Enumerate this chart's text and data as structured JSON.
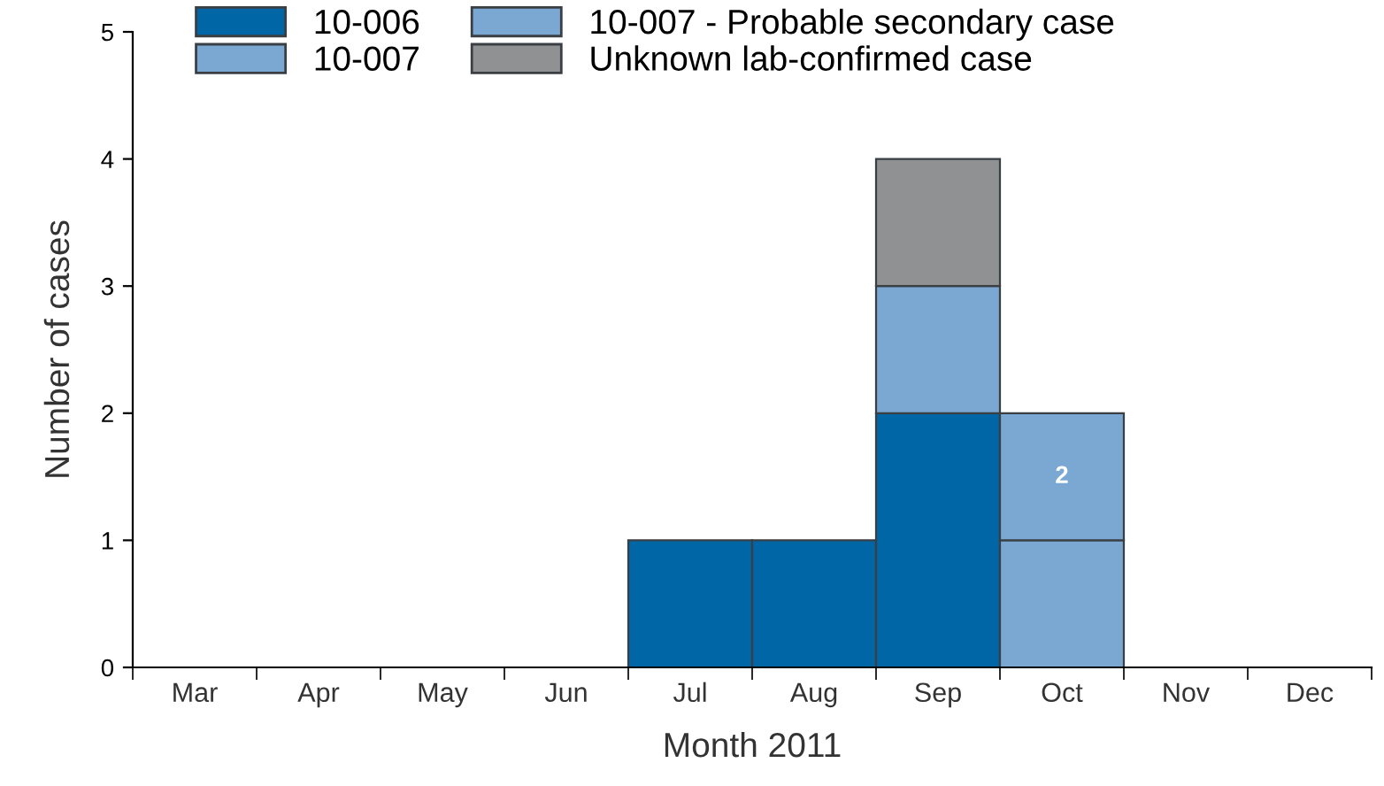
{
  "chart_data": {
    "type": "bar",
    "stacked": true,
    "xlabel": "Month 2011",
    "ylabel": "Number of cases",
    "categories": [
      "Mar",
      "Apr",
      "May",
      "Jun",
      "Jul",
      "Aug",
      "Sep",
      "Oct",
      "Nov",
      "Dec"
    ],
    "series": [
      {
        "name": "10-006",
        "color": "#0066a6",
        "values": [
          0,
          0,
          0,
          0,
          1,
          1,
          2,
          0,
          0,
          0
        ]
      },
      {
        "name": "10-007",
        "color": "#7ba7d3",
        "values": [
          0,
          0,
          0,
          0,
          0,
          0,
          1,
          1,
          0,
          0
        ]
      },
      {
        "name": "10-007 - Probable secondary case",
        "color": "#7ba7d3",
        "values": [
          0,
          0,
          0,
          0,
          0,
          0,
          0,
          1,
          0,
          0
        ]
      },
      {
        "name": "Unknown lab-confirmed case",
        "color": "#8f9193",
        "values": [
          0,
          0,
          0,
          0,
          0,
          0,
          1,
          0,
          0,
          0
        ]
      }
    ],
    "annotations": [
      "2"
    ],
    "ylim": [
      0,
      5
    ],
    "yticks": [
      0,
      1,
      2,
      3,
      4,
      5
    ],
    "grid": false,
    "legend": "top left"
  }
}
